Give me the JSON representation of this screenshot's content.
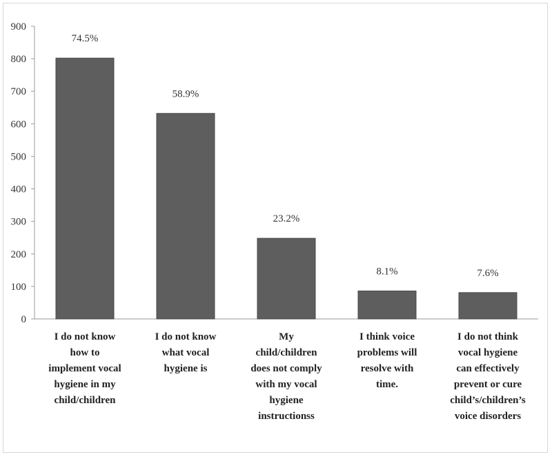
{
  "chart_data": {
    "type": "bar",
    "title": "",
    "xlabel": "",
    "ylabel": "",
    "ylim": [
      0,
      900
    ],
    "yticks": [
      0,
      100,
      200,
      300,
      400,
      500,
      600,
      700,
      800,
      900
    ],
    "grid": false,
    "legend": "none",
    "bar_color": "#5e5e5e",
    "categories": [
      [
        "I do not know",
        "how to",
        "implement vocal",
        "hygiene in my",
        "child/children"
      ],
      [
        "I do not know",
        "what  vocal",
        "hygiene is"
      ],
      [
        "My",
        "child/children",
        "does not comply",
        "with my vocal",
        "hygiene",
        "instructionss"
      ],
      [
        "I think voice",
        "problems will",
        "resolve with",
        "time."
      ],
      [
        "I do not think",
        "vocal hygiene",
        "can effectively",
        "prevent or cure",
        "child’s/children’s",
        "voice disorders"
      ]
    ],
    "values": [
      802,
      632,
      248,
      86,
      81
    ],
    "data_labels": [
      "74.5%",
      "58.9%",
      "23.2%",
      "8.1%",
      "7.6%"
    ]
  }
}
